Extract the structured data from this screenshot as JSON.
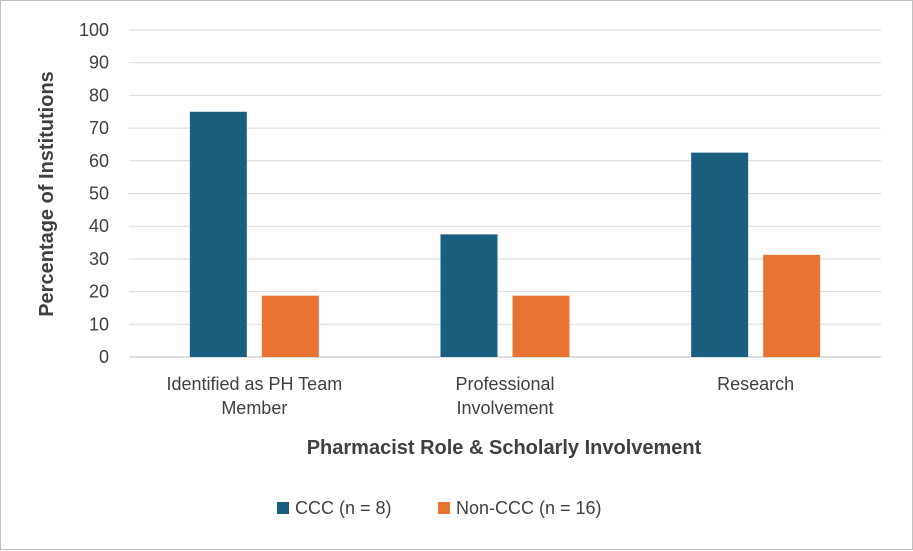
{
  "chart_data": {
    "type": "bar",
    "title": "",
    "xlabel": "Pharmacist Role & Scholarly Involvement",
    "ylabel": "Percentage of Institutions",
    "ylim": [
      0,
      100
    ],
    "yticks": [
      0,
      10,
      20,
      30,
      40,
      50,
      60,
      70,
      80,
      90,
      100
    ],
    "grid": true,
    "legend_position": "bottom",
    "categories": [
      [
        "Identified as PH Team",
        "Member"
      ],
      [
        "Professional",
        "Involvement"
      ],
      [
        "Research"
      ]
    ],
    "series": [
      {
        "name": "CCC (n = 8)",
        "color": "#1a5e80",
        "values": [
          75,
          37.5,
          62.5
        ]
      },
      {
        "name": "Non-CCC (n = 16)",
        "color": "#e87433",
        "values": [
          18.75,
          18.75,
          31.25
        ]
      }
    ]
  }
}
